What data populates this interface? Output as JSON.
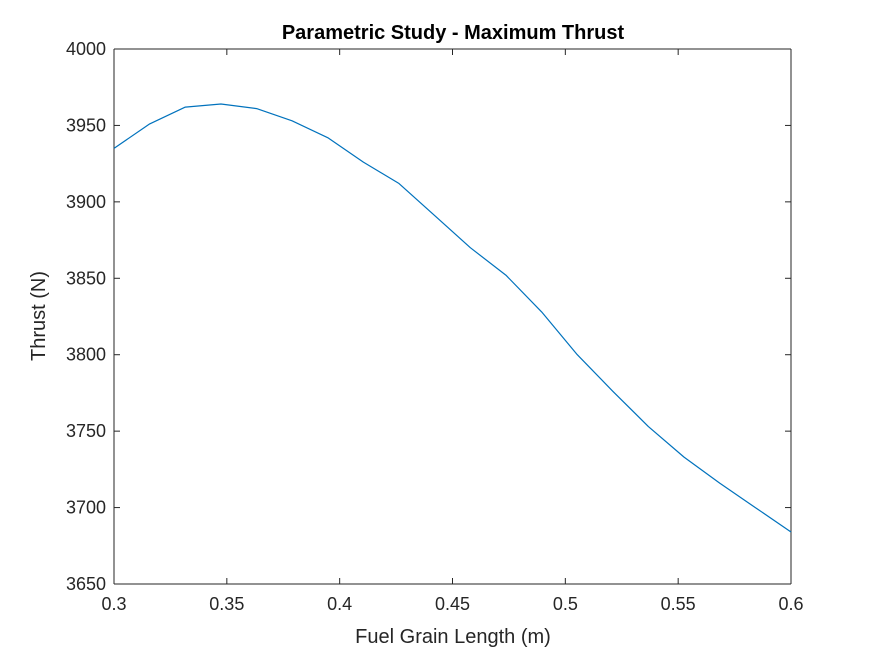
{
  "chart_data": {
    "type": "line",
    "title": "Parametric Study - Maximum Thrust",
    "xlabel": "Fuel Grain Length (m)",
    "ylabel": "Thrust (N)",
    "xlim": [
      0.3,
      0.6
    ],
    "ylim": [
      3650,
      4000
    ],
    "xticks": [
      0.3,
      0.35,
      0.4,
      0.45,
      0.5,
      0.55,
      0.6
    ],
    "xtick_labels": [
      "0.3",
      "0.35",
      "0.4",
      "0.45",
      "0.5",
      "0.55",
      "0.6"
    ],
    "yticks": [
      3650,
      3700,
      3750,
      3800,
      3850,
      3900,
      3950,
      4000
    ],
    "ytick_labels": [
      "3650",
      "3700",
      "3750",
      "3800",
      "3850",
      "3900",
      "3950",
      "4000"
    ],
    "grid": false,
    "series": [
      {
        "color": "#0072bd",
        "x": [
          0.3,
          0.3158,
          0.3316,
          0.3474,
          0.3632,
          0.3789,
          0.3947,
          0.4105,
          0.4263,
          0.4421,
          0.4579,
          0.4737,
          0.4895,
          0.5053,
          0.5211,
          0.5368,
          0.5526,
          0.5684,
          0.5842,
          0.6
        ],
        "y": [
          3935,
          3951,
          3962,
          3964,
          3961,
          3953,
          3942,
          3926,
          3912,
          3891,
          3870,
          3852,
          3828,
          3800,
          3776,
          3753,
          3733,
          3716,
          3700,
          3684
        ]
      }
    ]
  }
}
